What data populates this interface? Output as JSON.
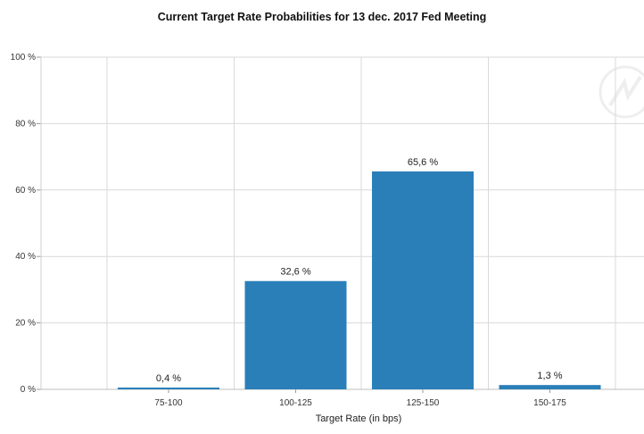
{
  "chart_data": {
    "type": "bar",
    "title": "Current Target Rate Probabilities for 13 dec. 2017 Fed Meeting",
    "xlabel": "Target Rate (in bps)",
    "ylabel": "",
    "ylim": [
      0,
      100
    ],
    "yticks": [
      0,
      20,
      40,
      60,
      80,
      100
    ],
    "ytick_labels": [
      "0 %",
      "20 %",
      "40 %",
      "60 %",
      "80 %",
      "100 %"
    ],
    "categories": [
      "75-100",
      "100-125",
      "125-150",
      "150-175"
    ],
    "values": [
      0.4,
      32.6,
      65.6,
      1.3
    ],
    "data_labels": [
      "0,4 %",
      "32,6 %",
      "65,6 %",
      "1,3 %"
    ],
    "grid": true,
    "bar_color": "#2a7fb8",
    "grid_color": "#d9d9d9"
  }
}
